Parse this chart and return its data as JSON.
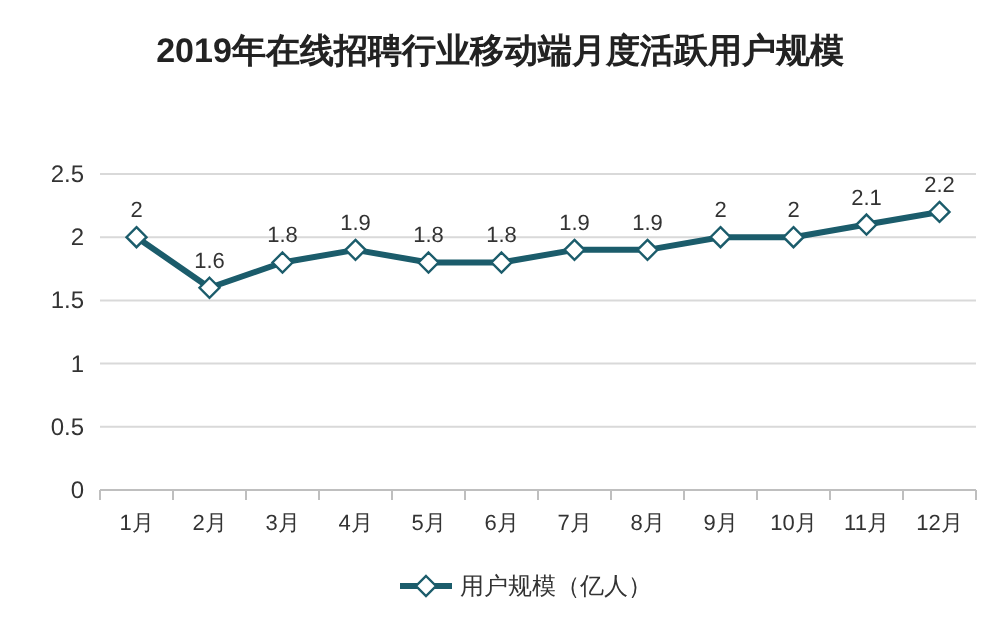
{
  "chart_data": {
    "type": "line",
    "title": "2019年在线招聘行业移动端月度活跃用户规模",
    "categories": [
      "1月",
      "2月",
      "3月",
      "4月",
      "5月",
      "6月",
      "7月",
      "8月",
      "9月",
      "10月",
      "11月",
      "12月"
    ],
    "series": [
      {
        "name": "用户规模（亿人）",
        "color": "#1b5c6b",
        "values": [
          2,
          1.6,
          1.8,
          1.9,
          1.8,
          1.8,
          1.9,
          1.9,
          2,
          2,
          2.1,
          2.2
        ]
      }
    ],
    "ylim": [
      0,
      2.5
    ],
    "yticks": [
      0,
      0.5,
      1,
      1.5,
      2,
      2.5
    ],
    "grid": "y",
    "legend": "bottom",
    "marker": "diamond",
    "line_style": "solid",
    "data_labels": true
  }
}
